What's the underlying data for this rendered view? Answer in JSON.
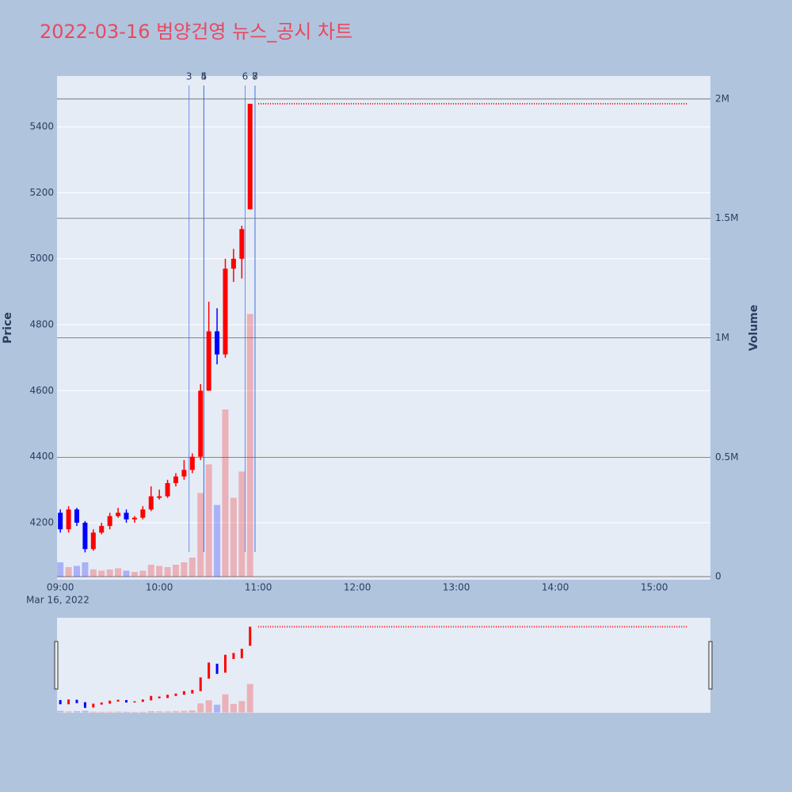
{
  "chart_data": {
    "type": "candlestick",
    "title": "2022-03-16 범양건영 뉴스_공시 차트",
    "y_title": "Price",
    "y2_title": "Volume",
    "x_date_label": "Mar 16, 2022",
    "xlim": [
      "08:58",
      "15:34"
    ],
    "xticks": [
      "09:00",
      "10:00",
      "11:00",
      "12:00",
      "13:00",
      "14:00",
      "15:00"
    ],
    "ylim": [
      4027,
      5554
    ],
    "yticks": [
      4200,
      4400,
      4600,
      4800,
      5000,
      5200,
      5400
    ],
    "y2lim": [
      -13000,
      2096000
    ],
    "y2ticks": [
      0,
      {
        "value": 500000,
        "label": "0.5M"
      },
      {
        "value": 1000000,
        "label": "1M"
      },
      {
        "value": 1500000,
        "label": "1.5M"
      },
      {
        "value": 2000000,
        "label": "2M"
      }
    ],
    "up_color": "#ff0000",
    "down_color": "#0000ff",
    "x": [
      "09:00",
      "09:05",
      "09:10",
      "09:15",
      "09:20",
      "09:25",
      "09:30",
      "09:35",
      "09:40",
      "09:45",
      "09:50",
      "09:55",
      "10:00",
      "10:05",
      "10:10",
      "10:15",
      "10:20",
      "10:25",
      "10:30",
      "10:35",
      "10:40",
      "10:45",
      "10:50",
      "10:55"
    ],
    "open": [
      4230,
      4180,
      4240,
      4200,
      4120,
      4170,
      4190,
      4220,
      4230,
      4210,
      4215,
      4240,
      4280,
      4280,
      4320,
      4340,
      4360,
      4400,
      4600,
      4780,
      4710,
      4970,
      5000,
      5150
    ],
    "high": [
      4240,
      4250,
      4245,
      4205,
      4180,
      4200,
      4230,
      4245,
      4240,
      4220,
      4250,
      4310,
      4300,
      4330,
      4350,
      4390,
      4410,
      4620,
      4870,
      4850,
      5000,
      5030,
      5100,
      5470
    ],
    "low": [
      4170,
      4170,
      4190,
      4110,
      4115,
      4165,
      4180,
      4215,
      4200,
      4200,
      4210,
      4235,
      4270,
      4275,
      4310,
      4330,
      4350,
      4390,
      4600,
      4680,
      4700,
      4930,
      4940,
      5150
    ],
    "close": [
      4180,
      4240,
      4200,
      4120,
      4170,
      4190,
      4220,
      4230,
      4210,
      4215,
      4240,
      4280,
      4280,
      4320,
      4340,
      4360,
      4400,
      4600,
      4780,
      4710,
      4970,
      5000,
      5090,
      5470
    ],
    "volume": [
      60000,
      40000,
      45000,
      60000,
      30000,
      25000,
      30000,
      35000,
      25000,
      20000,
      25000,
      50000,
      45000,
      40000,
      50000,
      60000,
      80000,
      350000,
      470000,
      300000,
      700000,
      330000,
      440000,
      1100000
    ],
    "hold": {
      "x": [
        "11:00",
        "15:20"
      ],
      "values": [
        5470,
        5470
      ]
    },
    "news": [
      {
        "label": "3",
        "x": "10:18"
      },
      {
        "label": "4",
        "x": "10:27"
      },
      {
        "label": "5",
        "x": "10:27"
      },
      {
        "label": "6",
        "x": "10:52"
      },
      {
        "label": "7",
        "x": "10:58"
      },
      {
        "label": "8",
        "x": "10:58"
      }
    ]
  }
}
